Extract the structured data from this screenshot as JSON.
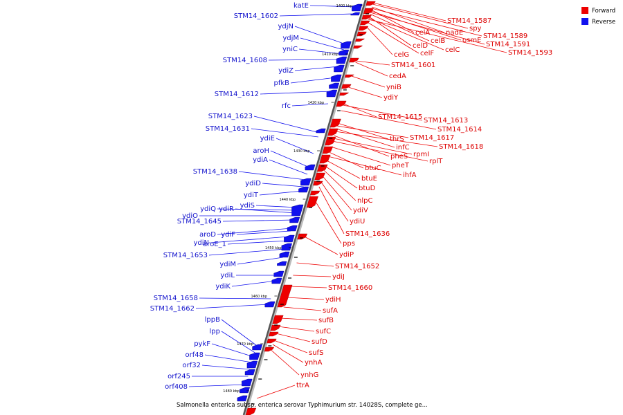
{
  "title": "Salmonella enterica subsp. enterica serovar Typhimurium str. 14028S, complete ge...",
  "legend": [
    {
      "label": "Forward",
      "color": "#ee0000"
    },
    {
      "label": "Reverse",
      "color": "#1111ee"
    }
  ],
  "ticks": [
    "1400 kbp",
    "1410 kbp",
    "1420 kbp",
    "1430 kbp",
    "1440 kbp",
    "1450 kbp",
    "1460 kbp",
    "1470 kbp",
    "1480 kbp"
  ],
  "forward_labels": [
    "STM14_1587",
    "spy",
    "nadE",
    "STM14_1589",
    "celA",
    "osmE",
    "STM14_1591",
    "celB",
    "celD",
    "celC",
    "STM14_1593",
    "celF",
    "celG",
    "STM14_1601",
    "cedA",
    "yniB",
    "ydiY",
    "STM14_1615",
    "STM14_1613",
    "STM14_1614",
    "thrS",
    "STM14_1617",
    "infC",
    "STM14_1618",
    "pheS",
    "rpmI",
    "rplT",
    "pheT",
    "btuC",
    "ihfA",
    "btuE",
    "btuD",
    "nlpC",
    "ydiV",
    "ydiU",
    "STM14_1636",
    "pps",
    "ydiP",
    "STM14_1652",
    "ydiJ",
    "STM14_1660",
    "ydiH",
    "sufA",
    "sufB",
    "sufC",
    "sufD",
    "sufS",
    "ynhA",
    "ynhG",
    "ttrA"
  ],
  "reverse_labels": [
    "katE",
    "STM14_1602",
    "ydjN",
    "ydjM",
    "yniC",
    "STM14_1608",
    "ydiZ",
    "pfkB",
    "STM14_1612",
    "rfc",
    "STM14_1623",
    "STM14_1631",
    "ydiE",
    "aroH",
    "ydiA",
    "STM14_1638",
    "ydiD",
    "ydiT",
    "ydiS",
    "ydiQ",
    "ydiR",
    "ydiO",
    "STM14_1645",
    "aroD",
    "ydiF",
    "ydiN",
    "aroE_1",
    "STM14_1653",
    "ydiM",
    "ydiL",
    "ydiK",
    "STM14_1658",
    "STM14_1662",
    "lppB",
    "lpp",
    "pykF",
    "orf48",
    "orf32",
    "orf245",
    "orf408"
  ]
}
